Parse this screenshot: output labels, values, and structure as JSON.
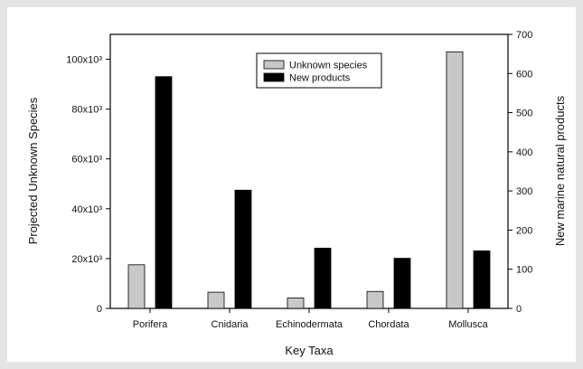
{
  "chart_data": {
    "type": "bar",
    "title": "",
    "xlabel": "Key Taxa",
    "ylabel": "Projected Unknown Species",
    "y2label": "New marine natural products",
    "categories": [
      "Porifera",
      "Cnidaria",
      "Echinodermata",
      "Chordata",
      "Mollusca"
    ],
    "ylim": [
      0,
      110000
    ],
    "y2lim": [
      0,
      700
    ],
    "yticks": [
      0,
      20000,
      40000,
      60000,
      80000,
      100000
    ],
    "ytick_labels": [
      "0",
      "20x10³",
      "40x10³",
      "60x10³",
      "80x10³",
      "100x10³"
    ],
    "y2ticks": [
      0,
      100,
      200,
      300,
      400,
      500,
      600,
      700
    ],
    "y2tick_labels": [
      "0",
      "100",
      "200",
      "300",
      "400",
      "500",
      "600",
      "700"
    ],
    "series": [
      {
        "name": "Unknown species",
        "axis": "left",
        "color": "#c8c8c8",
        "values": [
          17500,
          6500,
          4200,
          6800,
          103000
        ]
      },
      {
        "name": "New products",
        "axis": "right",
        "color": "#000000",
        "values": [
          592,
          302,
          154,
          128,
          147
        ]
      }
    ],
    "legend_position": "top-center",
    "grid": false
  }
}
